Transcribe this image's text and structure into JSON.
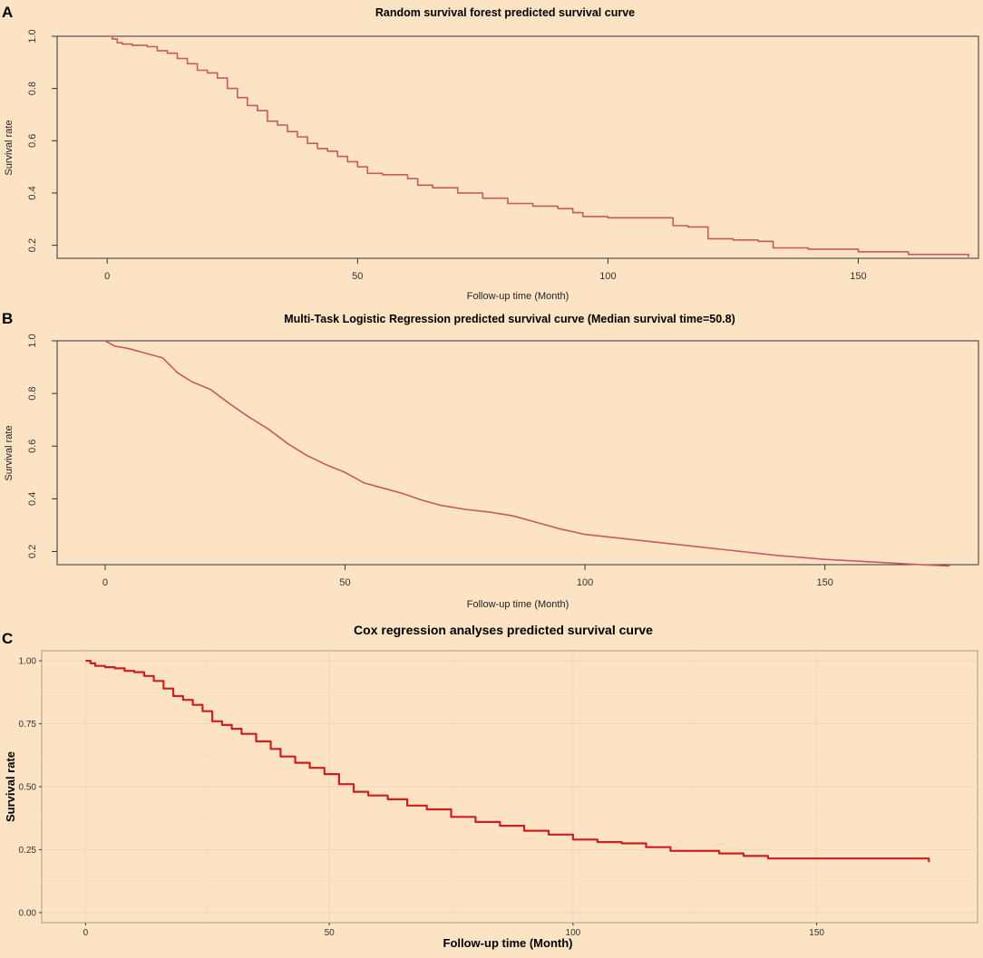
{
  "chart_data": [
    {
      "panel": "A",
      "type": "line",
      "title": "Random survival forest predicted survival curve",
      "xlabel": "Follow-up time (Month)",
      "ylabel": "Survival rate",
      "xticks": [
        "0",
        "50",
        "100",
        "150"
      ],
      "yticks": [
        "0.2",
        "0.4",
        "0.6",
        "0.8",
        "1.0"
      ],
      "xlim": [
        -10,
        174
      ],
      "ylim": [
        0.15,
        1.0
      ],
      "grid": false,
      "step": true,
      "color": "#c8595f",
      "x": [
        0,
        1,
        2,
        3,
        5,
        8,
        10,
        12,
        14,
        16,
        18,
        20,
        22,
        24,
        26,
        28,
        30,
        32,
        34,
        36,
        38,
        40,
        42,
        44,
        46,
        48,
        50,
        52,
        55,
        60,
        62,
        65,
        70,
        75,
        80,
        85,
        90,
        93,
        95,
        100,
        105,
        110,
        113,
        116,
        120,
        125,
        130,
        133,
        140,
        150,
        160,
        172
      ],
      "y": [
        1.0,
        0.99,
        0.975,
        0.97,
        0.965,
        0.96,
        0.945,
        0.935,
        0.915,
        0.895,
        0.87,
        0.86,
        0.84,
        0.8,
        0.765,
        0.735,
        0.715,
        0.675,
        0.66,
        0.635,
        0.615,
        0.59,
        0.57,
        0.56,
        0.54,
        0.52,
        0.5,
        0.475,
        0.47,
        0.455,
        0.43,
        0.42,
        0.4,
        0.38,
        0.36,
        0.35,
        0.34,
        0.325,
        0.31,
        0.305,
        0.305,
        0.305,
        0.275,
        0.27,
        0.225,
        0.22,
        0.215,
        0.19,
        0.185,
        0.175,
        0.165,
        0.155
      ]
    },
    {
      "panel": "B",
      "type": "line",
      "title": "Multi-Task Logistic Regression predicted survival curve (Median survival time=50.8)",
      "xlabel": "Follow-up time (Month)",
      "ylabel": "Survival rate",
      "xticks": [
        "0",
        "50",
        "100",
        "150"
      ],
      "yticks": [
        "0.2",
        "0.4",
        "0.6",
        "0.8",
        "1.0"
      ],
      "xlim": [
        -10,
        182
      ],
      "ylim": [
        0.15,
        1.0
      ],
      "grid": false,
      "step": false,
      "color": "#c8595f",
      "x": [
        0,
        2,
        5,
        8,
        12,
        15,
        18,
        22,
        26,
        30,
        34,
        38,
        42,
        46,
        50,
        54,
        58,
        62,
        66,
        70,
        75,
        80,
        85,
        90,
        95,
        100,
        110,
        120,
        130,
        140,
        150,
        160,
        170,
        176
      ],
      "y": [
        1.0,
        0.98,
        0.97,
        0.955,
        0.935,
        0.88,
        0.845,
        0.815,
        0.76,
        0.71,
        0.665,
        0.61,
        0.565,
        0.53,
        0.5,
        0.46,
        0.44,
        0.42,
        0.395,
        0.375,
        0.36,
        0.35,
        0.335,
        0.31,
        0.285,
        0.265,
        0.245,
        0.225,
        0.205,
        0.185,
        0.17,
        0.16,
        0.15,
        0.145
      ]
    },
    {
      "panel": "C",
      "type": "line",
      "title": "Cox regression analyses predicted survival curve",
      "xlabel": "Follow-up time (Month)",
      "ylabel": "Survival rate",
      "xticks": [
        "0",
        "50",
        "100",
        "150"
      ],
      "yticks": [
        "0.00",
        "0.25",
        "0.50",
        "0.75",
        "1.00"
      ],
      "xlim": [
        -9,
        183
      ],
      "ylim": [
        -0.04,
        1.04
      ],
      "grid": true,
      "step": true,
      "color": "#cc1f1f",
      "x": [
        0,
        1,
        2,
        4,
        6,
        8,
        10,
        12,
        14,
        16,
        18,
        20,
        22,
        24,
        26,
        28,
        30,
        32,
        35,
        38,
        40,
        43,
        46,
        49,
        52,
        55,
        58,
        62,
        66,
        70,
        75,
        80,
        85,
        90,
        95,
        100,
        105,
        110,
        115,
        120,
        125,
        130,
        135,
        140,
        150,
        160,
        172,
        173
      ],
      "y": [
        1.0,
        0.99,
        0.98,
        0.975,
        0.97,
        0.96,
        0.955,
        0.94,
        0.92,
        0.89,
        0.86,
        0.845,
        0.825,
        0.8,
        0.76,
        0.745,
        0.73,
        0.71,
        0.68,
        0.65,
        0.62,
        0.595,
        0.575,
        0.55,
        0.51,
        0.48,
        0.465,
        0.45,
        0.425,
        0.41,
        0.38,
        0.36,
        0.345,
        0.325,
        0.31,
        0.29,
        0.28,
        0.275,
        0.26,
        0.245,
        0.245,
        0.235,
        0.225,
        0.215,
        0.215,
        0.215,
        0.215,
        0.2
      ]
    }
  ]
}
